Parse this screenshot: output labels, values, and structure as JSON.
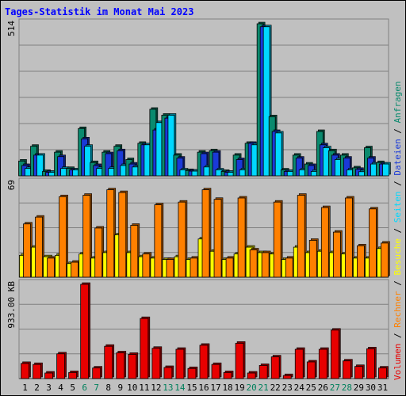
{
  "chart_data": {
    "type": "bar",
    "title": "Tages-Statistik im Monat Mai 2023",
    "x": [
      "1",
      "2",
      "3",
      "4",
      "5",
      "6",
      "7",
      "8",
      "9",
      "10",
      "11",
      "12",
      "13",
      "14",
      "15",
      "16",
      "17",
      "18",
      "19",
      "20",
      "21",
      "22",
      "23",
      "24",
      "25",
      "26",
      "27",
      "28",
      "29",
      "30",
      "31"
    ],
    "weekend_days": [
      "6",
      "7",
      "13",
      "14",
      "20",
      "21",
      "27",
      "28"
    ],
    "weekend_color": "#00805c",
    "weekday_color": "#000000",
    "panels": [
      {
        "id": "top",
        "ylim": [
          0,
          514
        ],
        "ytick_label": "514",
        "series": [
          {
            "name": "Anfragen",
            "color": "#0a8a6e",
            "values": [
              50,
              100,
              15,
              80,
              25,
              160,
              45,
              80,
              100,
              55,
              110,
              225,
              205,
              70,
              18,
              80,
              85,
              15,
              70,
              110,
              514,
              200,
              20,
              70,
              40,
              150,
              85,
              70,
              27,
              95,
              45
            ]
          },
          {
            "name": "Dateien",
            "color": "#1a3ad8",
            "values": [
              35,
              70,
              12,
              65,
              20,
              125,
              35,
              75,
              85,
              40,
              105,
              155,
              195,
              60,
              16,
              75,
              80,
              12,
              55,
              110,
              504,
              150,
              15,
              60,
              35,
              105,
              70,
              60,
              22,
              60,
              40
            ]
          },
          {
            "name": "Seiten",
            "color": "#00d8ff",
            "values": [
              25,
              70,
              12,
              25,
              20,
              100,
              25,
              25,
              35,
              30,
              105,
              180,
              205,
              20,
              16,
              30,
              20,
              12,
              20,
              105,
              504,
              145,
              15,
              20,
              15,
              95,
              55,
              20,
              14,
              40,
              40
            ]
          }
        ]
      },
      {
        "id": "mid",
        "ylim": [
          0,
          69
        ],
        "ytick_label": "69",
        "series": [
          {
            "name": "Besuche",
            "color": "#ffff00",
            "values": [
              16,
              22,
              15,
              16,
              10,
              17,
              14,
              18,
              31,
              18,
              15,
              14,
              13,
              15,
              13,
              28,
              19,
              13,
              17,
              22,
              18,
              17,
              13,
              22,
              18,
              19,
              18,
              17,
              14,
              14,
              21
            ]
          },
          {
            "name": "Rechner",
            "color": "#ff8000",
            "values": [
              39,
              44,
              14,
              59,
              11,
              60,
              36,
              64,
              62,
              38,
              17,
              53,
              13,
              55,
              14,
              64,
              57,
              14,
              58,
              20,
              18,
              55,
              14,
              60,
              27,
              51,
              33,
              58,
              23,
              50,
              25
            ]
          }
        ]
      },
      {
        "id": "bottom",
        "ylim": [
          0,
          933
        ],
        "ytick_label": "933.00 KB",
        "series": [
          {
            "name": "Volumen",
            "color": "#e80000",
            "values": [
              150,
              140,
              55,
              245,
              60,
              933,
              105,
              320,
              255,
              240,
              595,
              300,
              110,
              290,
              100,
              330,
              140,
              60,
              350,
              55,
              130,
              215,
              30,
              290,
              165,
              290,
              480,
              175,
              120,
              295,
              105
            ]
          }
        ]
      }
    ],
    "legend_right": [
      {
        "name": "Volumen",
        "color": "#e80000"
      },
      {
        "name": "Rechner",
        "color": "#ff8000"
      },
      {
        "name": "Besuche",
        "color": "#ffff00"
      },
      {
        "name": "Seiten",
        "color": "#00d8ff"
      },
      {
        "name": "Dateien",
        "color": "#1a3ad8"
      },
      {
        "name": "Anfragen",
        "color": "#0a8a6e"
      }
    ],
    "legend_separator": " / "
  }
}
